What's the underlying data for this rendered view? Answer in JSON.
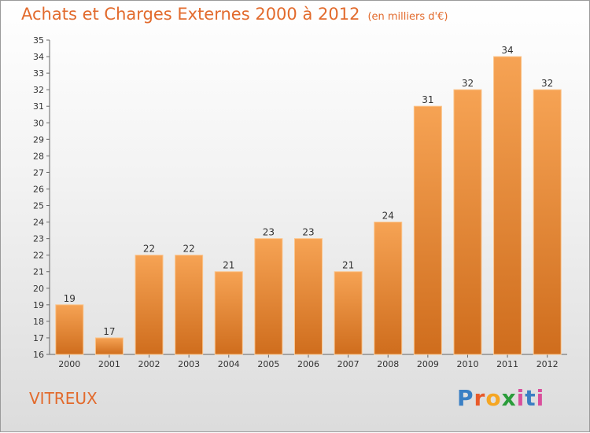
{
  "title": "Achats et Charges Externes 2000 à 2012",
  "subtitle": "(en milliers d'€)",
  "commune": "VITREUX",
  "logo": [
    "P",
    "r",
    "o",
    "x",
    "i",
    "t",
    "i"
  ],
  "colors": {
    "bar_top": "#f6a354",
    "bar_bottom": "#cf6d1d",
    "accent": "#e26a2c"
  },
  "chart_data": {
    "type": "bar",
    "categories": [
      "2000",
      "2001",
      "2002",
      "2003",
      "2004",
      "2005",
      "2006",
      "2007",
      "2008",
      "2009",
      "2010",
      "2011",
      "2012"
    ],
    "values": [
      19,
      17,
      22,
      22,
      21,
      23,
      23,
      21,
      24,
      31,
      32,
      34,
      32
    ],
    "ylim": [
      16,
      35
    ],
    "yticks": [
      16,
      17,
      18,
      19,
      20,
      21,
      22,
      23,
      24,
      25,
      26,
      27,
      28,
      29,
      30,
      31,
      32,
      33,
      34,
      35
    ],
    "grid": false,
    "legend": "none"
  }
}
